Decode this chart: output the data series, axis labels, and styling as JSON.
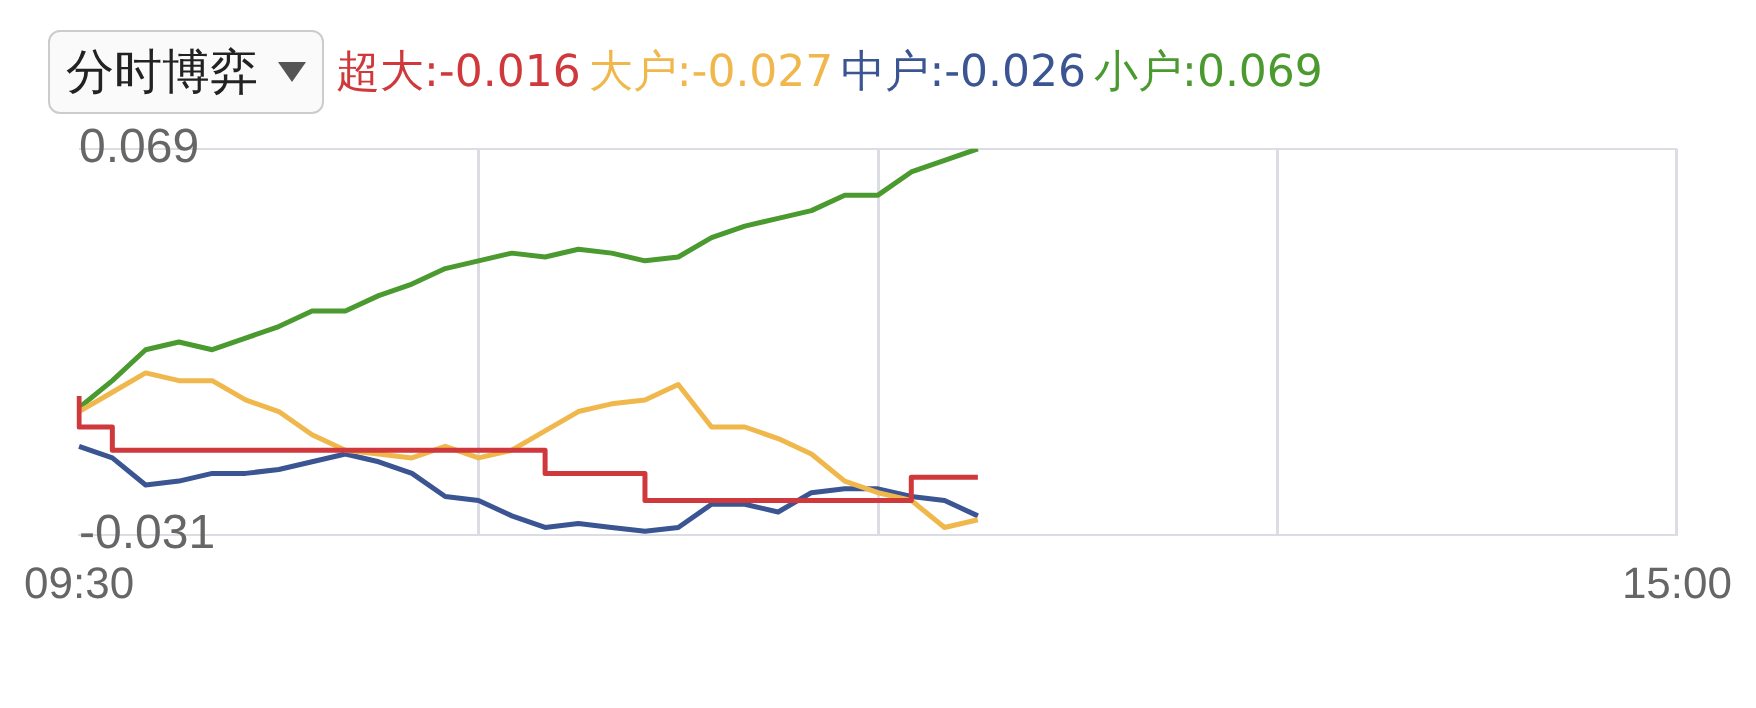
{
  "chart_data": {
    "type": "line",
    "title": "分时博弈",
    "legend": "top",
    "grid": true,
    "marker": "none",
    "line_style": "solid",
    "categories": [
      "09:30",
      null,
      null,
      null,
      null,
      null,
      null,
      null,
      null,
      null,
      null,
      null,
      null,
      null,
      null,
      null,
      null,
      null,
      null,
      null,
      null,
      null,
      null,
      null,
      null,
      null,
      null,
      null,
      null,
      null,
      null,
      null,
      null,
      null,
      null,
      null,
      null,
      null,
      null,
      null,
      null,
      null,
      null,
      null,
      null,
      null,
      null,
      null,
      "15:00"
    ],
    "ylim": [
      -0.031,
      0.069
    ],
    "yticks": [
      -0.031,
      0.069
    ],
    "series": [
      {
        "name": "超大:-0.016",
        "color": "#d0393b",
        "type": "step",
        "values": [
          0.005,
          -0.003,
          -0.009,
          -0.009,
          -0.009,
          -0.009,
          -0.009,
          -0.009,
          -0.009,
          -0.009,
          -0.009,
          -0.009,
          -0.009,
          -0.009,
          -0.009,
          -0.015,
          -0.015,
          -0.015,
          -0.022,
          -0.022,
          -0.022,
          -0.022,
          -0.022,
          -0.022,
          -0.022,
          -0.022,
          -0.016,
          -0.016,
          null,
          null,
          null,
          null,
          null,
          null,
          null,
          null,
          null,
          null,
          null,
          null,
          null,
          null,
          null,
          null,
          null,
          null,
          null,
          null,
          null
        ]
      },
      {
        "name": "大户:-0.027",
        "color": "#f0b84c",
        "values": [
          0.001,
          0.006,
          0.011,
          0.009,
          0.009,
          0.004,
          0.001,
          -0.005,
          -0.009,
          -0.01,
          -0.011,
          -0.008,
          -0.011,
          -0.009,
          -0.004,
          0.001,
          0.003,
          0.004,
          0.008,
          -0.003,
          -0.003,
          -0.006,
          -0.01,
          -0.017,
          -0.02,
          -0.022,
          -0.029,
          -0.027,
          null,
          null,
          null,
          null,
          null,
          null,
          null,
          null,
          null,
          null,
          null,
          null,
          null,
          null,
          null,
          null,
          null,
          null,
          null,
          null,
          null
        ]
      },
      {
        "name": "中户:-0.026",
        "color": "#3a5592",
        "values": [
          -0.008,
          -0.011,
          -0.018,
          -0.017,
          -0.015,
          -0.015,
          -0.014,
          -0.012,
          -0.01,
          -0.012,
          -0.015,
          -0.021,
          -0.022,
          -0.026,
          -0.029,
          -0.028,
          -0.029,
          -0.03,
          -0.029,
          -0.023,
          -0.023,
          -0.025,
          -0.02,
          -0.019,
          -0.019,
          -0.021,
          -0.022,
          -0.026,
          null,
          null,
          null,
          null,
          null,
          null,
          null,
          null,
          null,
          null,
          null,
          null,
          null,
          null,
          null,
          null,
          null,
          null,
          null,
          null,
          null
        ]
      },
      {
        "name": "小户:0.069",
        "color": "#4a9a2f",
        "values": [
          0.002,
          0.009,
          0.017,
          0.019,
          0.017,
          0.02,
          0.023,
          0.027,
          0.027,
          0.031,
          0.034,
          0.038,
          0.04,
          0.042,
          0.041,
          0.043,
          0.042,
          0.04,
          0.041,
          0.046,
          0.049,
          0.051,
          0.053,
          0.057,
          0.057,
          0.063,
          0.066,
          0.069,
          null,
          null,
          null,
          null,
          null,
          null,
          null,
          null,
          null,
          null,
          null,
          null,
          null,
          null,
          null,
          null,
          null,
          null,
          null,
          null,
          null
        ]
      }
    ]
  }
}
